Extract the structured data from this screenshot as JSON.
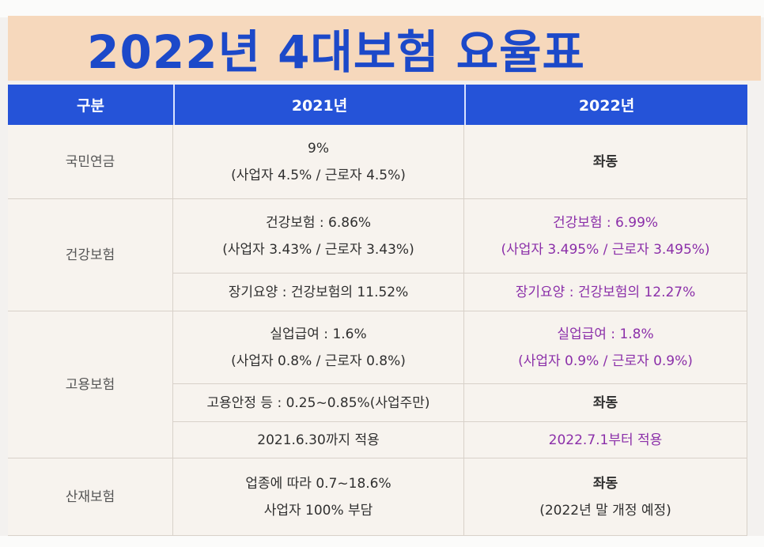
{
  "title": "2022년 4대보험 요율표",
  "headers": [
    "구분",
    "2021년",
    "2022년"
  ],
  "rows": {
    "pension": {
      "category": "국민연금",
      "y2021": [
        "9%",
        "(사업자 4.5% / 근로자 4.5%)"
      ],
      "y2022": [
        "좌동"
      ]
    },
    "health": {
      "category": "건강보험",
      "y2021": [
        "건강보험 : 6.86%",
        "(사업자 3.43% / 근로자 3.43%)"
      ],
      "y2022": [
        "건강보험 : 6.99%",
        "(사업자 3.495% / 근로자 3.495%)"
      ]
    },
    "ltc": {
      "y2021": [
        "장기요양 : 건강보험의 11.52%"
      ],
      "y2022": [
        "장기요양 : 건강보험의 12.27%"
      ]
    },
    "employment": {
      "category": "고용보험",
      "y2021": [
        "실업급여 : 1.6%",
        "(사업자 0.8% / 근로자 0.8%)"
      ],
      "y2022": [
        "실업급여 : 1.8%",
        "(사업자 0.9% / 근로자 0.9%)"
      ]
    },
    "stability": {
      "y2021": [
        "고용안정 등 : 0.25~0.85%(사업주만)"
      ],
      "y2022": [
        "좌동"
      ]
    },
    "applied": {
      "y2021": [
        "2021.6.30까지 적용"
      ],
      "y2022": [
        "2022.7.1부터 적용"
      ]
    },
    "industrial": {
      "category": "산재보험",
      "y2021": [
        "업종에 따라 0.7~18.6%",
        "사업자 100% 부담"
      ],
      "y2022": [
        "좌동",
        "(2022년 말 개정 예정)"
      ]
    }
  },
  "colors": {
    "header": "#2553d8",
    "title": "#1c49c9",
    "highlight": "#8b2fa9",
    "title_band": "#f6d8bc"
  }
}
